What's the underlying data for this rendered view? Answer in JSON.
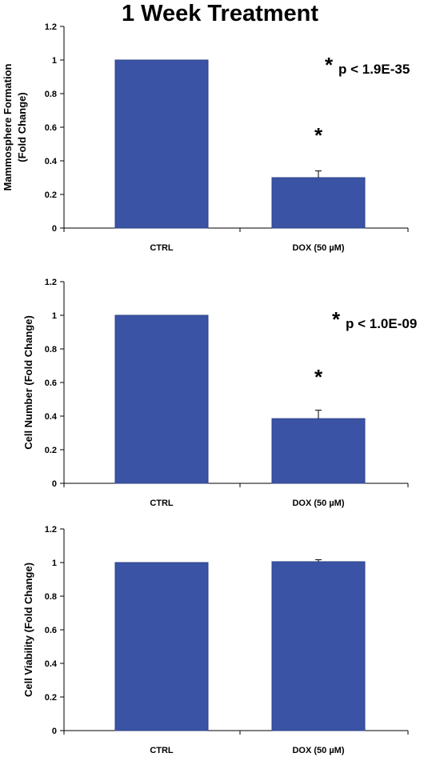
{
  "title": "1 Week Treatment",
  "colors": {
    "bar": "#3a53a4",
    "bar_edge": "#2e4389",
    "axis": "#000000"
  },
  "chart_data": [
    {
      "type": "bar",
      "categories": [
        "CTRL",
        "DOX (50 µM)"
      ],
      "values": [
        1.0,
        0.3
      ],
      "errors": [
        0.0,
        0.04
      ],
      "ylim": [
        0,
        1.2
      ],
      "ytick_labels": [
        "0",
        "0.2",
        "0.4",
        "0.6",
        "0.8",
        "1",
        "1.2"
      ],
      "ylabel_lines": [
        "Mammosphere Formation",
        "(Fold Change)"
      ],
      "significance_star": "*",
      "annotation_star": "*",
      "annotation_text": "p < 1.9E-35"
    },
    {
      "type": "bar",
      "categories": [
        "CTRL",
        "DOX (50 µM)"
      ],
      "values": [
        1.0,
        0.385
      ],
      "errors": [
        0.0,
        0.05
      ],
      "ylim": [
        0,
        1.2
      ],
      "ytick_labels": [
        "0",
        "0.2",
        "0.4",
        "0.6",
        "0.8",
        "1",
        "1.2"
      ],
      "ylabel_lines": [
        "Cell Number  (Fold Change)"
      ],
      "significance_star": "*",
      "annotation_star": "*",
      "annotation_text": "p < 1.0E-09"
    },
    {
      "type": "bar",
      "categories": [
        "CTRL",
        "DOX (50 µM)"
      ],
      "values": [
        1.0,
        1.005
      ],
      "errors": [
        0.0,
        0.012
      ],
      "ylim": [
        0,
        1.2
      ],
      "ytick_labels": [
        "0",
        "0.2",
        "0.4",
        "0.6",
        "0.8",
        "1",
        "1.2"
      ],
      "ylabel_lines": [
        "Cell Viability (Fold Change)"
      ]
    }
  ]
}
